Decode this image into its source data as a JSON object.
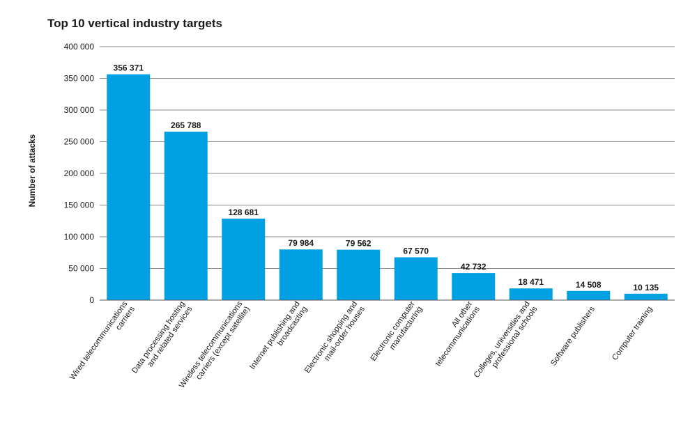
{
  "chart_data": {
    "type": "bar",
    "title": "Top 10 vertical industry targets",
    "xlabel": "",
    "ylabel": "Number of attacks",
    "ylim": [
      0,
      400000
    ],
    "yticks": [
      0,
      50000,
      100000,
      150000,
      200000,
      250000,
      300000,
      350000,
      400000
    ],
    "ytick_labels": [
      "0",
      "50 000",
      "100 000",
      "150 000",
      "200 000",
      "250 000",
      "300 000",
      "350 000",
      "400 000"
    ],
    "grid": true,
    "bar_color": "#00a0e3",
    "categories": [
      [
        "Wired telecommunications",
        "carriers"
      ],
      [
        "Data processing hosting",
        "and related services"
      ],
      [
        "Wireless telecommunications",
        "carriers (except satellite)"
      ],
      [
        "Internet publishing and",
        "broadcasting"
      ],
      [
        "Electronic shopping and",
        "mail-order houses"
      ],
      [
        "Electronic computer",
        "manufacturing"
      ],
      [
        "All other",
        "telecommunications"
      ],
      [
        "Colleges, universities and",
        "professional schools"
      ],
      [
        "Software publishers"
      ],
      [
        "Computer training"
      ]
    ],
    "values": [
      356371,
      265788,
      128681,
      79984,
      79562,
      67570,
      42732,
      18471,
      14508,
      10135
    ],
    "value_labels": [
      "356 371",
      "265 788",
      "128 681",
      "79 984",
      "79 562",
      "67 570",
      "42 732",
      "18 471",
      "14 508",
      "10 135"
    ]
  }
}
